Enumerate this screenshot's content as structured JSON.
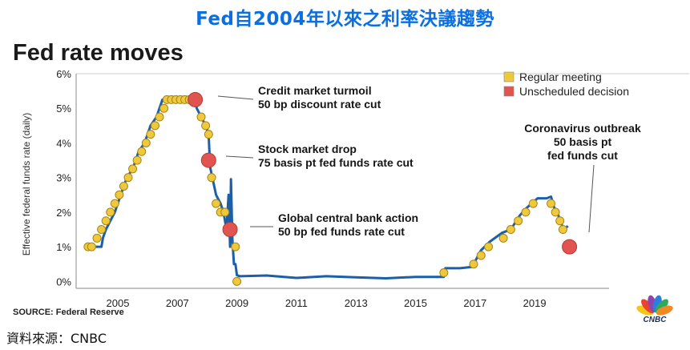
{
  "banner": {
    "title": "Fed自2004年以來之利率決議趨勢"
  },
  "chart_title": "Fed rate moves",
  "source": "SOURCE: Federal Reserve",
  "footer": "資料來源：CNBC",
  "logo": {
    "icon": "cnbc-peacock-icon",
    "text": "CNBC",
    "colors": [
      "#f5c518",
      "#e8452c",
      "#8e44ad",
      "#2a7de1",
      "#2eaa5c",
      "#f08a24"
    ]
  },
  "colors": {
    "line": "#1b5fa8",
    "regular": "#eec93b",
    "unscheduled": "#e05550",
    "marker_stroke": "#a88418",
    "axis": "#555555",
    "banner": "#0b6fe0"
  },
  "chart_data": {
    "type": "line",
    "title": "Fed rate moves",
    "xlabel": "",
    "ylabel": "Effective federal funds rate (daily)",
    "xlim": [
      2003.6,
      2021.5
    ],
    "ylim": [
      -0.2,
      6.0
    ],
    "x_ticks": [
      "2005",
      "2007",
      "2009",
      "2011",
      "2013",
      "2015",
      "2017",
      "2019"
    ],
    "x_tick_values": [
      2005,
      2007,
      2009,
      2011,
      2013,
      2015,
      2017,
      2019
    ],
    "y_ticks": [
      "0%",
      "1%",
      "2%",
      "3%",
      "4%",
      "5%",
      "6%"
    ],
    "y_tick_values": [
      0,
      1,
      2,
      3,
      4,
      5,
      6
    ],
    "grid": false,
    "legend_position": "top-right",
    "legend": [
      {
        "label": "Regular meeting",
        "color_key": "regular"
      },
      {
        "label": "Unscheduled decision",
        "color_key": "unscheduled"
      }
    ],
    "series": [
      {
        "name": "Effective federal funds rate",
        "x": [
          2004.0,
          2004.45,
          2004.5,
          2004.6,
          2004.75,
          2004.9,
          2005.1,
          2005.3,
          2005.5,
          2005.7,
          2005.9,
          2006.1,
          2006.3,
          2006.5,
          2006.7,
          2006.9,
          2007.1,
          2007.3,
          2007.5,
          2007.6,
          2007.65,
          2007.8,
          2007.95,
          2008.05,
          2008.1,
          2008.3,
          2008.45,
          2008.55,
          2008.65,
          2008.72,
          2008.77,
          2008.8,
          2008.85,
          2008.9,
          2008.95,
          2009.0,
          2009.1,
          2010.0,
          2011.0,
          2012.0,
          2013.0,
          2014.0,
          2015.0,
          2015.95,
          2016.0,
          2016.5,
          2016.9,
          2017.2,
          2017.5,
          2017.9,
          2018.2,
          2018.5,
          2018.7,
          2018.9,
          2019.1,
          2019.4,
          2019.55,
          2019.65,
          2019.8,
          2019.95,
          2020.05,
          2020.12
        ],
        "y": [
          1.0,
          1.0,
          1.25,
          1.5,
          1.75,
          2.0,
          2.5,
          3.0,
          3.25,
          3.75,
          4.0,
          4.5,
          4.75,
          5.25,
          5.25,
          5.25,
          5.25,
          5.25,
          5.25,
          5.15,
          5.0,
          4.75,
          4.5,
          4.25,
          3.3,
          2.5,
          2.25,
          2.0,
          1.5,
          2.5,
          1.0,
          2.95,
          1.2,
          0.5,
          0.5,
          0.18,
          0.15,
          0.17,
          0.1,
          0.15,
          0.12,
          0.09,
          0.13,
          0.13,
          0.38,
          0.38,
          0.42,
          0.9,
          1.15,
          1.4,
          1.5,
          1.9,
          2.1,
          2.25,
          2.4,
          2.4,
          2.45,
          2.15,
          1.9,
          1.55,
          1.55,
          1.6
        ]
      }
    ],
    "regular_meetings": [
      {
        "x": 2004.0,
        "y": 1.0
      },
      {
        "x": 2004.12,
        "y": 1.0
      },
      {
        "x": 2004.3,
        "y": 1.25
      },
      {
        "x": 2004.45,
        "y": 1.5
      },
      {
        "x": 2004.6,
        "y": 1.75
      },
      {
        "x": 2004.75,
        "y": 2.0
      },
      {
        "x": 2004.9,
        "y": 2.25
      },
      {
        "x": 2005.05,
        "y": 2.5
      },
      {
        "x": 2005.2,
        "y": 2.75
      },
      {
        "x": 2005.35,
        "y": 3.0
      },
      {
        "x": 2005.5,
        "y": 3.25
      },
      {
        "x": 2005.65,
        "y": 3.5
      },
      {
        "x": 2005.8,
        "y": 3.75
      },
      {
        "x": 2005.95,
        "y": 4.0
      },
      {
        "x": 2006.1,
        "y": 4.25
      },
      {
        "x": 2006.25,
        "y": 4.5
      },
      {
        "x": 2006.4,
        "y": 4.75
      },
      {
        "x": 2006.55,
        "y": 5.0
      },
      {
        "x": 2006.65,
        "y": 5.25
      },
      {
        "x": 2006.8,
        "y": 5.25
      },
      {
        "x": 2006.95,
        "y": 5.25
      },
      {
        "x": 2007.1,
        "y": 5.25
      },
      {
        "x": 2007.25,
        "y": 5.25
      },
      {
        "x": 2007.4,
        "y": 5.25
      },
      {
        "x": 2007.5,
        "y": 5.25
      },
      {
        "x": 2007.8,
        "y": 4.75
      },
      {
        "x": 2007.95,
        "y": 4.5
      },
      {
        "x": 2008.05,
        "y": 4.25
      },
      {
        "x": 2008.15,
        "y": 3.0
      },
      {
        "x": 2008.3,
        "y": 2.25
      },
      {
        "x": 2008.45,
        "y": 2.0
      },
      {
        "x": 2008.6,
        "y": 2.0
      },
      {
        "x": 2008.95,
        "y": 1.0
      },
      {
        "x": 2009.0,
        "y": 0.0
      },
      {
        "x": 2015.95,
        "y": 0.25
      },
      {
        "x": 2016.95,
        "y": 0.5
      },
      {
        "x": 2017.2,
        "y": 0.75
      },
      {
        "x": 2017.45,
        "y": 1.0
      },
      {
        "x": 2017.95,
        "y": 1.25
      },
      {
        "x": 2018.2,
        "y": 1.5
      },
      {
        "x": 2018.45,
        "y": 1.75
      },
      {
        "x": 2018.7,
        "y": 2.0
      },
      {
        "x": 2018.95,
        "y": 2.25
      },
      {
        "x": 2019.55,
        "y": 2.25
      },
      {
        "x": 2019.7,
        "y": 2.0
      },
      {
        "x": 2019.85,
        "y": 1.75
      },
      {
        "x": 2019.95,
        "y": 1.5
      }
    ],
    "unscheduled_decisions": [
      {
        "x": 2007.6,
        "y": 5.25
      },
      {
        "x": 2008.05,
        "y": 3.5
      },
      {
        "x": 2008.77,
        "y": 1.5
      },
      {
        "x": 2020.17,
        "y": 1.0
      }
    ],
    "annotations": [
      {
        "lines": [
          "Credit market turmoil",
          "50 bp discount rate cut"
        ],
        "x": 2007.6,
        "y": 5.25,
        "align": "start"
      },
      {
        "lines": [
          "Stock market drop",
          "75 basis pt fed funds rate cut"
        ],
        "x": 2008.05,
        "y": 3.5,
        "align": "start"
      },
      {
        "lines": [
          "Global central bank action",
          "50 bp fed funds rate cut"
        ],
        "x": 2008.77,
        "y": 1.5,
        "align": "start"
      },
      {
        "lines": [
          "Coronavirus outbreak",
          "50 basis pt",
          "fed funds cut"
        ],
        "x": 2020.17,
        "y": 1.0,
        "align": "middle"
      }
    ]
  }
}
